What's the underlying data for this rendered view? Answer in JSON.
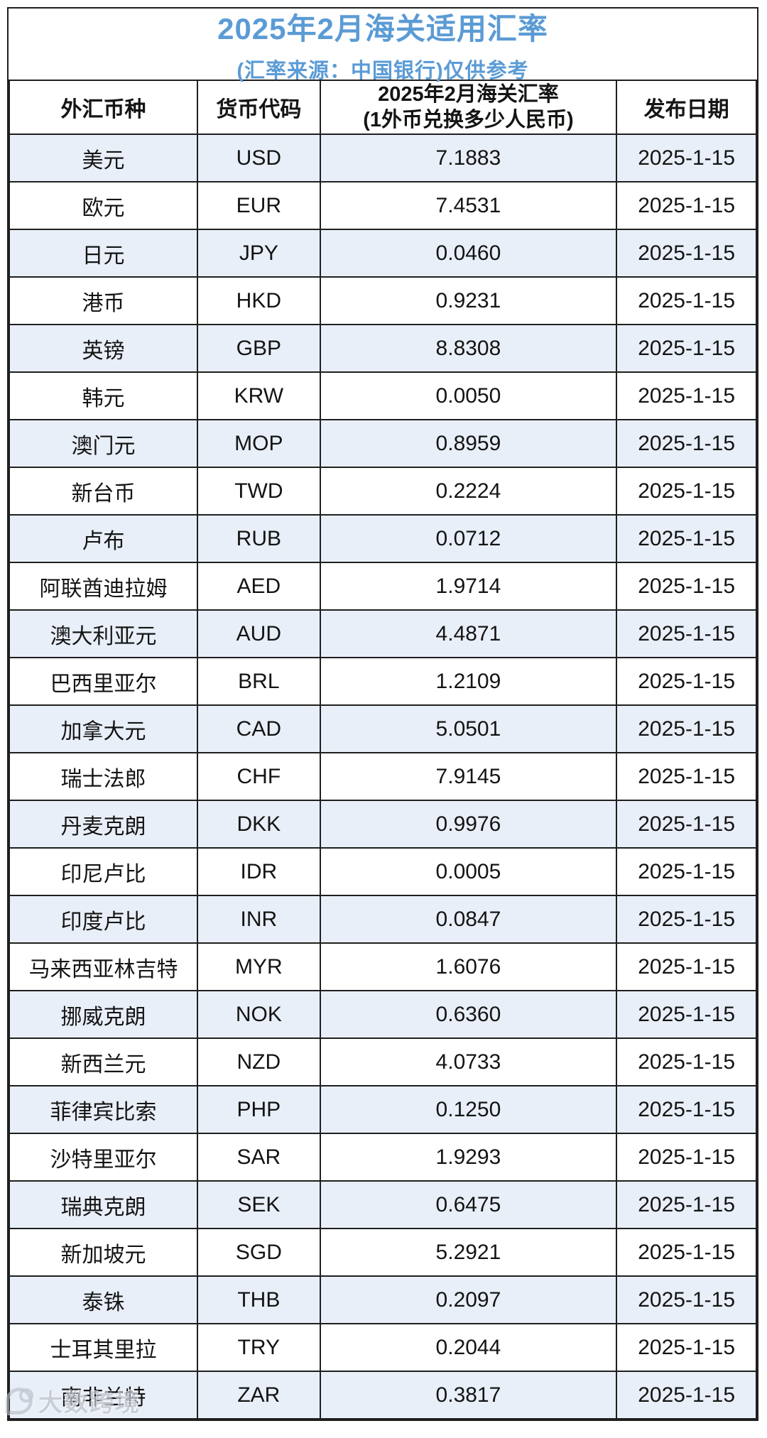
{
  "title": {
    "main": "2025年2月海关适用汇率",
    "subtitle": "(汇率来源：中国银行)仅供参考"
  },
  "table": {
    "headers": {
      "currency": "外汇币种",
      "code": "货币代码",
      "rate_line1": "2025年2月海关汇率",
      "rate_line2": "(1外币兑换多少人民币)",
      "date": "发布日期"
    },
    "rows": [
      {
        "currency": "美元",
        "code": "USD",
        "rate": "7.1883",
        "date": "2025-1-15"
      },
      {
        "currency": "欧元",
        "code": "EUR",
        "rate": "7.4531",
        "date": "2025-1-15"
      },
      {
        "currency": "日元",
        "code": "JPY",
        "rate": "0.0460",
        "date": "2025-1-15"
      },
      {
        "currency": "港币",
        "code": "HKD",
        "rate": "0.9231",
        "date": "2025-1-15"
      },
      {
        "currency": "英镑",
        "code": "GBP",
        "rate": "8.8308",
        "date": "2025-1-15"
      },
      {
        "currency": "韩元",
        "code": "KRW",
        "rate": "0.0050",
        "date": "2025-1-15"
      },
      {
        "currency": "澳门元",
        "code": "MOP",
        "rate": "0.8959",
        "date": "2025-1-15"
      },
      {
        "currency": "新台币",
        "code": "TWD",
        "rate": "0.2224",
        "date": "2025-1-15"
      },
      {
        "currency": "卢布",
        "code": "RUB",
        "rate": "0.0712",
        "date": "2025-1-15"
      },
      {
        "currency": "阿联酋迪拉姆",
        "code": "AED",
        "rate": "1.9714",
        "date": "2025-1-15"
      },
      {
        "currency": "澳大利亚元",
        "code": "AUD",
        "rate": "4.4871",
        "date": "2025-1-15"
      },
      {
        "currency": "巴西里亚尔",
        "code": "BRL",
        "rate": "1.2109",
        "date": "2025-1-15"
      },
      {
        "currency": "加拿大元",
        "code": "CAD",
        "rate": "5.0501",
        "date": "2025-1-15"
      },
      {
        "currency": "瑞士法郎",
        "code": "CHF",
        "rate": "7.9145",
        "date": "2025-1-15"
      },
      {
        "currency": "丹麦克朗",
        "code": "DKK",
        "rate": "0.9976",
        "date": "2025-1-15"
      },
      {
        "currency": "印尼卢比",
        "code": "IDR",
        "rate": "0.0005",
        "date": "2025-1-15"
      },
      {
        "currency": "印度卢比",
        "code": "INR",
        "rate": "0.0847",
        "date": "2025-1-15"
      },
      {
        "currency": "马来西亚林吉特",
        "code": "MYR",
        "rate": "1.6076",
        "date": "2025-1-15"
      },
      {
        "currency": "挪威克朗",
        "code": "NOK",
        "rate": "0.6360",
        "date": "2025-1-15"
      },
      {
        "currency": "新西兰元",
        "code": "NZD",
        "rate": "4.0733",
        "date": "2025-1-15"
      },
      {
        "currency": "菲律宾比索",
        "code": "PHP",
        "rate": "0.1250",
        "date": "2025-1-15"
      },
      {
        "currency": "沙特里亚尔",
        "code": "SAR",
        "rate": "1.9293",
        "date": "2025-1-15"
      },
      {
        "currency": "瑞典克朗",
        "code": "SEK",
        "rate": "0.6475",
        "date": "2025-1-15"
      },
      {
        "currency": "新加坡元",
        "code": "SGD",
        "rate": "5.2921",
        "date": "2025-1-15"
      },
      {
        "currency": "泰铢",
        "code": "THB",
        "rate": "0.2097",
        "date": "2025-1-15"
      },
      {
        "currency": "士耳其里拉",
        "code": "TRY",
        "rate": "0.2044",
        "date": "2025-1-15"
      },
      {
        "currency": "南非兰特",
        "code": "ZAR",
        "rate": "0.3817",
        "date": "2025-1-15"
      }
    ]
  },
  "watermark": {
    "label": "大数跨境"
  },
  "colors": {
    "accent_blue": "#5B9BD5",
    "row_stripe": "#E9EFF8",
    "border": "#1F1F1F"
  },
  "chart_data": {
    "type": "table",
    "title": "2025年2月海关适用汇率",
    "subtitle": "(汇率来源：中国银行)仅供参考",
    "columns": [
      "外汇币种",
      "货币代码",
      "2025年2月海关汇率(1外币兑换多少人民币)",
      "发布日期"
    ],
    "rows": [
      [
        "美元",
        "USD",
        "7.1883",
        "2025-1-15"
      ],
      [
        "欧元",
        "EUR",
        "7.4531",
        "2025-1-15"
      ],
      [
        "日元",
        "JPY",
        "0.0460",
        "2025-1-15"
      ],
      [
        "港币",
        "HKD",
        "0.9231",
        "2025-1-15"
      ],
      [
        "英镑",
        "GBP",
        "8.8308",
        "2025-1-15"
      ],
      [
        "韩元",
        "KRW",
        "0.0050",
        "2025-1-15"
      ],
      [
        "澳门元",
        "MOP",
        "0.8959",
        "2025-1-15"
      ],
      [
        "新台币",
        "TWD",
        "0.2224",
        "2025-1-15"
      ],
      [
        "卢布",
        "RUB",
        "0.0712",
        "2025-1-15"
      ],
      [
        "阿联酋迪拉姆",
        "AED",
        "1.9714",
        "2025-1-15"
      ],
      [
        "澳大利亚元",
        "AUD",
        "4.4871",
        "2025-1-15"
      ],
      [
        "巴西里亚尔",
        "BRL",
        "1.2109",
        "2025-1-15"
      ],
      [
        "加拿大元",
        "CAD",
        "5.0501",
        "2025-1-15"
      ],
      [
        "瑞士法郎",
        "CHF",
        "7.9145",
        "2025-1-15"
      ],
      [
        "丹麦克朗",
        "DKK",
        "0.9976",
        "2025-1-15"
      ],
      [
        "印尼卢比",
        "IDR",
        "0.0005",
        "2025-1-15"
      ],
      [
        "印度卢比",
        "INR",
        "0.0847",
        "2025-1-15"
      ],
      [
        "马来西亚林吉特",
        "MYR",
        "1.6076",
        "2025-1-15"
      ],
      [
        "挪威克朗",
        "NOK",
        "0.6360",
        "2025-1-15"
      ],
      [
        "新西兰元",
        "NZD",
        "4.0733",
        "2025-1-15"
      ],
      [
        "菲律宾比索",
        "PHP",
        "0.1250",
        "2025-1-15"
      ],
      [
        "沙特里亚尔",
        "SAR",
        "1.9293",
        "2025-1-15"
      ],
      [
        "瑞典克朗",
        "SEK",
        "0.6475",
        "2025-1-15"
      ],
      [
        "新加坡元",
        "SGD",
        "5.2921",
        "2025-1-15"
      ],
      [
        "泰铢",
        "THB",
        "0.2097",
        "2025-1-15"
      ],
      [
        "士耳其里拉",
        "TRY",
        "0.2044",
        "2025-1-15"
      ],
      [
        "南非兰特",
        "ZAR",
        "0.3817",
        "2025-1-15"
      ]
    ]
  }
}
